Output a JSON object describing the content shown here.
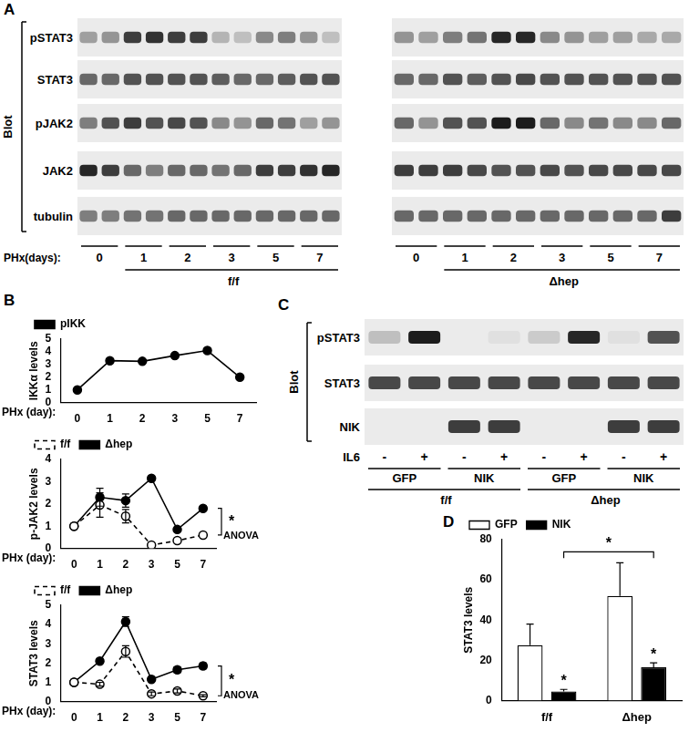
{
  "panels": [
    "A",
    "B",
    "C",
    "D"
  ],
  "blots": [
    {
      "panel": "A",
      "side_label": "Blot",
      "rows": [
        "pSTAT3",
        "STAT3",
        "pJAK2",
        "JAK2",
        "tubulin"
      ],
      "x_label": "PHx(days):",
      "lane_groups": [
        "0",
        "1",
        "2",
        "3",
        "5",
        "7"
      ],
      "sets": [
        {
          "name": "f/f",
          "intensity": [
            [
              0.35,
              0.4,
              0.8,
              0.85,
              0.8,
              0.8,
              0.25,
              0.2,
              0.45,
              0.5,
              0.4,
              0.2
            ],
            [
              0.6,
              0.6,
              0.7,
              0.7,
              0.7,
              0.7,
              0.65,
              0.6,
              0.6,
              0.65,
              0.7,
              0.7
            ],
            [
              0.5,
              0.7,
              0.8,
              0.7,
              0.75,
              0.7,
              0.45,
              0.4,
              0.6,
              0.55,
              0.35,
              0.4
            ],
            [
              0.9,
              0.8,
              0.6,
              0.5,
              0.6,
              0.6,
              0.55,
              0.6,
              0.8,
              0.8,
              0.85,
              0.9
            ],
            [
              0.5,
              0.5,
              0.55,
              0.55,
              0.6,
              0.6,
              0.6,
              0.6,
              0.6,
              0.6,
              0.6,
              0.6
            ]
          ]
        },
        {
          "name": "Δhep",
          "intensity": [
            [
              0.4,
              0.35,
              0.5,
              0.55,
              0.9,
              0.9,
              0.45,
              0.4,
              0.35,
              0.35,
              0.3,
              0.3
            ],
            [
              0.6,
              0.6,
              0.7,
              0.65,
              0.7,
              0.75,
              0.7,
              0.7,
              0.7,
              0.7,
              0.7,
              0.7
            ],
            [
              0.6,
              0.4,
              0.7,
              0.7,
              0.95,
              0.95,
              0.6,
              0.45,
              0.55,
              0.45,
              0.45,
              0.6
            ],
            [
              0.8,
              0.8,
              0.8,
              0.75,
              0.7,
              0.7,
              0.75,
              0.7,
              0.75,
              0.75,
              0.75,
              0.75
            ],
            [
              0.6,
              0.6,
              0.6,
              0.6,
              0.6,
              0.6,
              0.6,
              0.6,
              0.6,
              0.6,
              0.6,
              0.8
            ]
          ]
        }
      ]
    },
    {
      "panel": "C",
      "side_label": "Blot",
      "rows": [
        "pSTAT3",
        "STAT3",
        "NIK"
      ],
      "sign_label": "IL6",
      "lane_signs": [
        "-",
        "+",
        "-",
        "+"
      ],
      "lane_groups": [
        "GFP",
        "NIK"
      ],
      "sets": [
        {
          "name": "f/f",
          "intensity": [
            [
              0.2,
              0.95,
              0.0,
              0.05
            ],
            [
              0.75,
              0.75,
              0.75,
              0.75
            ],
            [
              0.0,
              0.0,
              0.8,
              0.8
            ]
          ]
        },
        {
          "name": "Δhep",
          "intensity": [
            [
              0.15,
              0.9,
              0.05,
              0.7
            ],
            [
              0.75,
              0.75,
              0.75,
              0.75
            ],
            [
              0.0,
              0.0,
              0.8,
              0.8
            ]
          ]
        }
      ]
    }
  ],
  "chart_data": [
    {
      "panel": "B",
      "type": "line",
      "y_label": "IKKα levels",
      "x_label": "PHx (day):",
      "categories": [
        "0",
        "1",
        "2",
        "3",
        "5",
        "7"
      ],
      "series": [
        {
          "name": "pIKK",
          "color": "#000000",
          "marker": "filled_circle",
          "line_style": "solid",
          "values": [
            1,
            3.3,
            3.25,
            3.7,
            4.1,
            2.0
          ]
        }
      ],
      "ylim": [
        0,
        5
      ],
      "yticks": [
        0,
        1,
        2,
        3,
        4,
        5
      ],
      "grid": false,
      "legend": "top-left"
    },
    {
      "type": "line",
      "y_label": "p-JAK2 levels",
      "x_label": "PHx (day):",
      "categories": [
        "0",
        "1",
        "2",
        "3",
        "5",
        "7"
      ],
      "series": [
        {
          "name": "f/f",
          "color": "#000000",
          "marker": "open_circle",
          "line_style": "dashed",
          "values": [
            1,
            1.95,
            1.45,
            0.15,
            0.35,
            0.6
          ],
          "errors": [
            null,
            0.55,
            0.3,
            null,
            null,
            null
          ]
        },
        {
          "name": "Δhep",
          "color": "#000000",
          "marker": "filled_circle",
          "line_style": "solid",
          "values": [
            1,
            2.3,
            2.15,
            3.15,
            0.85,
            1.8
          ],
          "errors": [
            null,
            0.4,
            0.3,
            null,
            null,
            null
          ]
        }
      ],
      "annotations": [
        "*",
        "ANOVA"
      ],
      "ylim": [
        0,
        4
      ],
      "yticks": [
        0,
        1,
        2,
        3,
        4
      ],
      "grid": false,
      "legend": "top-left"
    },
    {
      "type": "line",
      "y_label": "STAT3 levels",
      "x_label": "PHx (day):",
      "categories": [
        "0",
        "1",
        "2",
        "3",
        "5",
        "7"
      ],
      "series": [
        {
          "name": "f/f",
          "color": "#000000",
          "marker": "open_circle",
          "line_style": "dashed",
          "values": [
            1,
            0.9,
            2.6,
            0.4,
            0.55,
            0.3
          ],
          "errors": [
            null,
            0.1,
            0.3,
            0.1,
            0.1,
            0.05
          ]
        },
        {
          "name": "Δhep",
          "color": "#000000",
          "marker": "filled_circle",
          "line_style": "solid",
          "values": [
            1,
            2.1,
            4.15,
            1.15,
            1.65,
            1.85
          ],
          "errors": [
            null,
            0.1,
            0.25,
            0.1,
            0.15,
            0.15
          ]
        }
      ],
      "annotations": [
        "*",
        "ANOVA"
      ],
      "ylim": [
        0,
        5
      ],
      "yticks": [
        0,
        1,
        2,
        3,
        4,
        5
      ],
      "grid": false,
      "legend": "top-left"
    },
    {
      "panel": "D",
      "type": "bar",
      "y_label": "STAT3 levels",
      "categories": [
        "f/f",
        "Δhep"
      ],
      "series": [
        {
          "name": "GFP",
          "color": "#ffffff",
          "values": [
            27.5,
            52
          ],
          "errors": [
            10.5,
            16.5
          ]
        },
        {
          "name": "NIK",
          "color": "#000000",
          "values": [
            4.5,
            16.5
          ],
          "errors": [
            1,
            2.2
          ],
          "annotations": [
            "*",
            "*"
          ]
        }
      ],
      "brackets": [
        {
          "text": "*",
          "series": "NIK",
          "from": "f/f",
          "to": "Δhep"
        }
      ],
      "ylim": [
        0,
        80
      ],
      "yticks": [
        0,
        20,
        40,
        60,
        80
      ],
      "grid": false,
      "legend": "top-left"
    }
  ]
}
